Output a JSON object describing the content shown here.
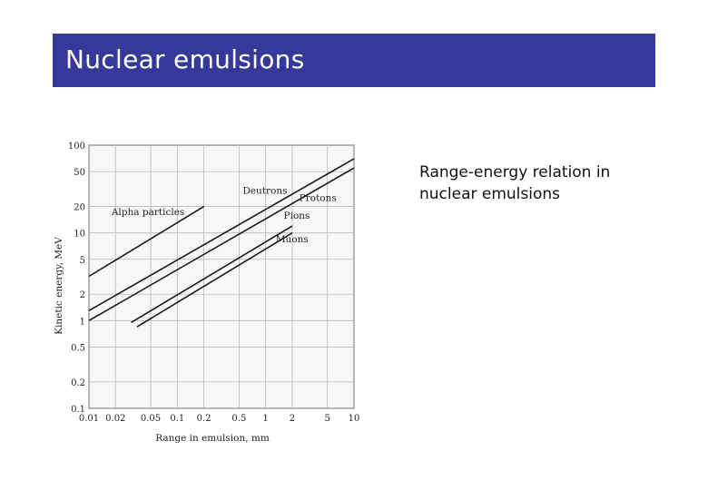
{
  "slide": {
    "title": "Nuclear emulsions",
    "caption": "Range-energy relation in nuclear emulsions",
    "title_bar_color": "#35399a"
  },
  "chart_data": {
    "type": "line",
    "xscale": "log",
    "yscale": "log",
    "xlabel": "Range in emulsion, mm",
    "ylabel": "Kinetic energy, MeV",
    "xlim": [
      0.01,
      10
    ],
    "ylim": [
      0.1,
      100
    ],
    "x_ticks": [
      0.01,
      0.02,
      0.05,
      0.1,
      0.2,
      0.5,
      1,
      2,
      5,
      10
    ],
    "x_tick_labels": [
      "0.01",
      "0.02",
      "0.05",
      "0.1",
      "0.2",
      "0.5",
      "1",
      "2",
      "5",
      "10"
    ],
    "y_ticks": [
      0.1,
      0.2,
      0.5,
      1,
      2,
      5,
      10,
      20,
      50,
      100
    ],
    "y_tick_labels": [
      "0.1",
      "0.2",
      "0.5",
      "1",
      "2",
      "5",
      "10",
      "20",
      "50",
      "100"
    ],
    "grid": true,
    "series": [
      {
        "name": "Alpha particles",
        "x": [
          0.01,
          0.2
        ],
        "y": [
          3.2,
          20
        ]
      },
      {
        "name": "Deutrons",
        "x": [
          0.01,
          10
        ],
        "y": [
          1.3,
          70
        ]
      },
      {
        "name": "Protons",
        "x": [
          0.01,
          10
        ],
        "y": [
          1.0,
          55
        ]
      },
      {
        "name": "Pions",
        "x": [
          0.03,
          2
        ],
        "y": [
          0.95,
          12
        ]
      },
      {
        "name": "Muons",
        "x": [
          0.035,
          2
        ],
        "y": [
          0.85,
          10
        ]
      }
    ]
  }
}
